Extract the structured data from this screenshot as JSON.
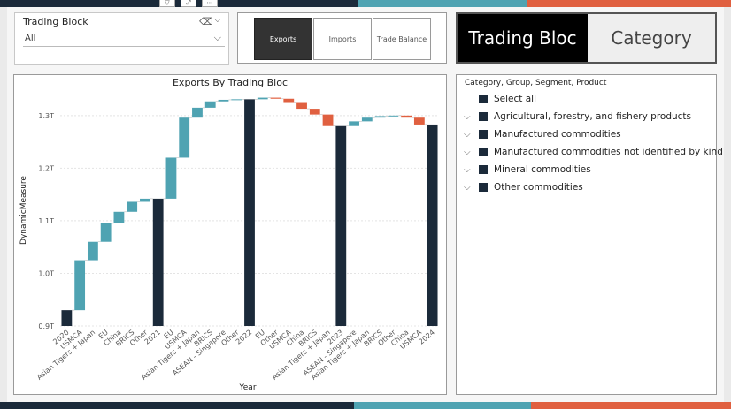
{
  "slicer": {
    "title": "Trading Block",
    "value": "All"
  },
  "buttons": [
    {
      "label": "Exports",
      "active": true
    },
    {
      "label": "Imports",
      "active": false
    },
    {
      "label": "Trade Balance",
      "active": false
    }
  ],
  "toggle": {
    "on_label": "Trading Bloc",
    "off_label": "Category"
  },
  "hierarchy": {
    "title": "Category, Group, Segment, Product",
    "items": [
      {
        "label": "Select all",
        "expandable": false
      },
      {
        "label": "Agricultural, forestry, and fishery products",
        "expandable": true
      },
      {
        "label": "Manufactured commodities",
        "expandable": true
      },
      {
        "label": "Manufactured commodities not identified by kind",
        "expandable": true
      },
      {
        "label": "Mineral commodities",
        "expandable": true
      },
      {
        "label": "Other commodities",
        "expandable": true
      }
    ]
  },
  "colors": {
    "total": "#1b2a3a",
    "increase": "#4fa3b2",
    "decrease": "#e06040"
  },
  "chart_data": {
    "type": "waterfall",
    "title": "Exports By Trading Bloc",
    "xlabel": "Year",
    "ylabel": "DynamicMeasure",
    "ylim": [
      0.9,
      1.34
    ],
    "y_ticks": [
      "0.9T",
      "1.0T",
      "1.1T",
      "1.2T",
      "1.3T"
    ],
    "y_tick_values": [
      0.9,
      1.0,
      1.1,
      1.2,
      1.3
    ],
    "steps": [
      {
        "label": "2020",
        "kind": "total",
        "start": 0.9,
        "end": 0.93
      },
      {
        "label": "USMCA",
        "kind": "increase",
        "start": 0.93,
        "end": 1.025
      },
      {
        "label": "Asian Tigers + Japan",
        "kind": "increase",
        "start": 1.025,
        "end": 1.06
      },
      {
        "label": "EU",
        "kind": "increase",
        "start": 1.06,
        "end": 1.095
      },
      {
        "label": "China",
        "kind": "increase",
        "start": 1.095,
        "end": 1.117
      },
      {
        "label": "BRICS",
        "kind": "increase",
        "start": 1.117,
        "end": 1.136
      },
      {
        "label": "Other",
        "kind": "increase",
        "start": 1.136,
        "end": 1.142
      },
      {
        "label": "2021",
        "kind": "total",
        "start": 0.9,
        "end": 1.142
      },
      {
        "label": "EU",
        "kind": "increase",
        "start": 1.142,
        "end": 1.22
      },
      {
        "label": "USMCA",
        "kind": "increase",
        "start": 1.22,
        "end": 1.296
      },
      {
        "label": "Asian Tigers + Japan",
        "kind": "increase",
        "start": 1.296,
        "end": 1.315
      },
      {
        "label": "BRICS",
        "kind": "increase",
        "start": 1.315,
        "end": 1.327
      },
      {
        "label": "ASEAN - Singapore",
        "kind": "increase",
        "start": 1.327,
        "end": 1.33
      },
      {
        "label": "Other",
        "kind": "increase",
        "start": 1.33,
        "end": 1.331
      },
      {
        "label": "2022",
        "kind": "total",
        "start": 0.9,
        "end": 1.331
      },
      {
        "label": "EU",
        "kind": "increase",
        "start": 1.331,
        "end": 1.334
      },
      {
        "label": "Other",
        "kind": "decrease",
        "start": 1.334,
        "end": 1.332
      },
      {
        "label": "USMCA",
        "kind": "decrease",
        "start": 1.332,
        "end": 1.324
      },
      {
        "label": "China",
        "kind": "decrease",
        "start": 1.324,
        "end": 1.313
      },
      {
        "label": "BRICS",
        "kind": "decrease",
        "start": 1.313,
        "end": 1.302
      },
      {
        "label": "Asian Tigers + Japan",
        "kind": "decrease",
        "start": 1.302,
        "end": 1.28
      },
      {
        "label": "2023",
        "kind": "total",
        "start": 0.9,
        "end": 1.28
      },
      {
        "label": "ASEAN - Singapore",
        "kind": "increase",
        "start": 1.28,
        "end": 1.289
      },
      {
        "label": "Asian Tigers + Japan",
        "kind": "increase",
        "start": 1.289,
        "end": 1.296
      },
      {
        "label": "BRICS",
        "kind": "increase",
        "start": 1.296,
        "end": 1.299
      },
      {
        "label": "Other",
        "kind": "increase",
        "start": 1.299,
        "end": 1.3
      },
      {
        "label": "China",
        "kind": "decrease",
        "start": 1.3,
        "end": 1.296
      },
      {
        "label": "USMCA",
        "kind": "decrease",
        "start": 1.296,
        "end": 1.283
      },
      {
        "label": "2024",
        "kind": "total",
        "start": 0.9,
        "end": 1.283
      }
    ]
  }
}
